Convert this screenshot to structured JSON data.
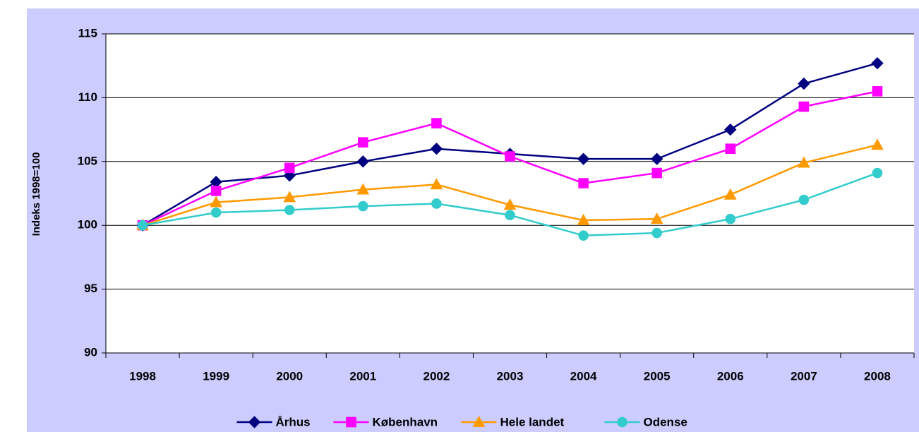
{
  "chart_data": {
    "type": "line",
    "y_label": "Indeks 1998=100",
    "categories": [
      "1998",
      "1999",
      "2000",
      "2001",
      "2002",
      "2003",
      "2004",
      "2005",
      "2006",
      "2007",
      "2008"
    ],
    "series": [
      {
        "name": "Århus",
        "color": "#000080",
        "marker": "diamond",
        "values": [
          100,
          103.4,
          103.9,
          105.0,
          106.0,
          105.6,
          105.2,
          105.2,
          107.5,
          111.1,
          112.7
        ]
      },
      {
        "name": "København",
        "color": "#ff00ff",
        "marker": "square",
        "values": [
          100,
          102.7,
          104.5,
          106.5,
          108.0,
          105.4,
          103.3,
          104.1,
          106.0,
          109.3,
          110.5
        ]
      },
      {
        "name": "Hele landet",
        "color": "#ff9900",
        "marker": "triangle",
        "values": [
          100,
          101.8,
          102.2,
          102.8,
          103.2,
          101.6,
          100.4,
          100.5,
          102.4,
          104.9,
          106.3
        ]
      },
      {
        "name": "Odense",
        "color": "#33cccc",
        "marker": "circle",
        "values": [
          100,
          101.0,
          101.2,
          101.5,
          101.7,
          100.8,
          99.2,
          99.4,
          100.5,
          102.0,
          104.1
        ]
      }
    ],
    "ylim": [
      90,
      115
    ],
    "yticks": [
      90,
      95,
      100,
      105,
      110,
      115
    ],
    "grid": true,
    "legend": "bottom"
  }
}
